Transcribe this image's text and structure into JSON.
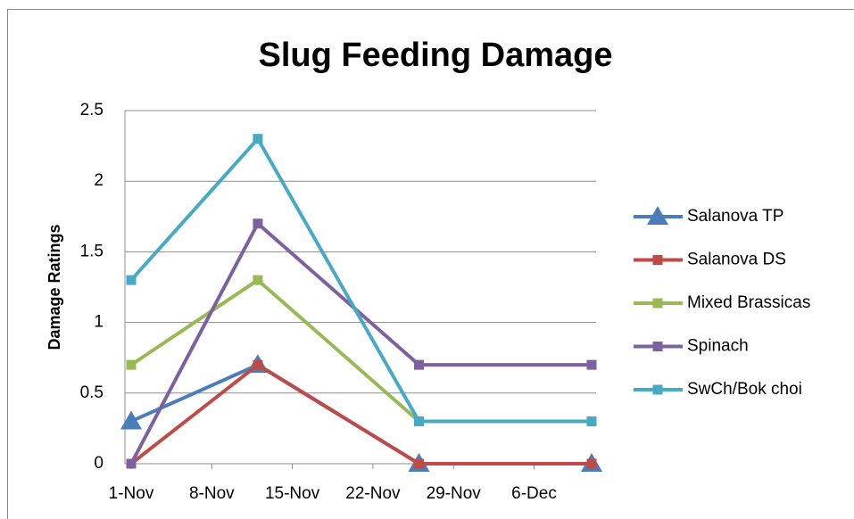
{
  "chart_data": {
    "type": "line",
    "title": "Slug Feeding Damage",
    "y_label": "Damage Ratings",
    "x": [
      1,
      12,
      26,
      41
    ],
    "xlim": [
      1,
      41
    ],
    "xticks": [
      {
        "value": 1,
        "label": "1-Nov"
      },
      {
        "value": 8,
        "label": "8-Nov"
      },
      {
        "value": 15,
        "label": "15-Nov"
      },
      {
        "value": 22,
        "label": "22-Nov"
      },
      {
        "value": 29,
        "label": "29-Nov"
      },
      {
        "value": 36,
        "label": "6-Dec"
      }
    ],
    "ylim": [
      0,
      2.5
    ],
    "yticks": [
      0,
      0.5,
      1,
      1.5,
      2,
      2.5
    ],
    "grid": true,
    "legend": "right",
    "series": [
      {
        "name": "Salanova TP",
        "color": "#4a7ebb",
        "marker": "triangle",
        "values": [
          0.3,
          0.7,
          0,
          0
        ]
      },
      {
        "name": "Salanova DS",
        "color": "#be4b48",
        "marker": "square",
        "values": [
          0,
          0.7,
          0,
          0
        ]
      },
      {
        "name": "Mixed Brassicas",
        "color": "#98b954",
        "marker": "square",
        "values": [
          0.7,
          1.3,
          0.3,
          0.3
        ]
      },
      {
        "name": "Spinach",
        "color": "#7d60a0",
        "marker": "square",
        "values": [
          0,
          1.7,
          0.7,
          0.7
        ]
      },
      {
        "name": "SwCh/Bok choi",
        "color": "#46aac5",
        "marker": "square",
        "values": [
          1.3,
          2.3,
          0.3,
          0.3
        ]
      }
    ]
  }
}
